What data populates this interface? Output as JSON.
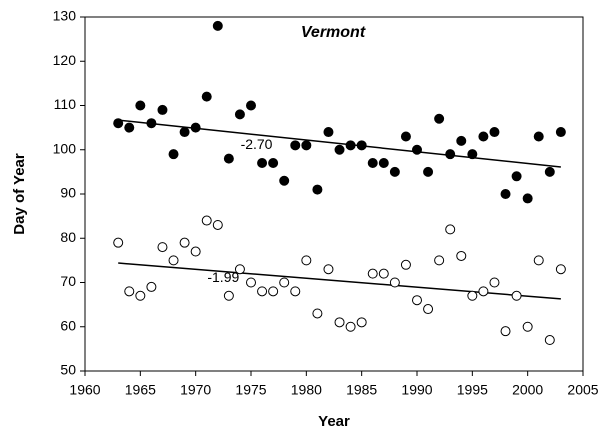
{
  "chart_data": {
    "type": "scatter",
    "title": "Vermont",
    "xlabel": "Year",
    "ylabel": "Day of Year",
    "xlim": [
      1960,
      2005
    ],
    "xticks": [
      1960,
      1965,
      1970,
      1975,
      1980,
      1985,
      1990,
      1995,
      2000,
      2005
    ],
    "ylim": [
      50,
      130
    ],
    "yticks": [
      50,
      60,
      70,
      80,
      90,
      100,
      110,
      120,
      130
    ],
    "x": [
      1963,
      1964,
      1965,
      1966,
      1967,
      1968,
      1969,
      1970,
      1971,
      1972,
      1973,
      1974,
      1975,
      1976,
      1977,
      1978,
      1979,
      1980,
      1981,
      1982,
      1983,
      1984,
      1985,
      1986,
      1987,
      1988,
      1989,
      1990,
      1991,
      1992,
      1993,
      1994,
      1995,
      1996,
      1997,
      1998,
      1999,
      2000,
      2001,
      2002,
      2003
    ],
    "series": [
      {
        "color": "#000000",
        "filled": true,
        "values": [
          106,
          105,
          110,
          106,
          109,
          99,
          104,
          105,
          112,
          128,
          98,
          108,
          110,
          97,
          97,
          93,
          101,
          101,
          91,
          104,
          100,
          101,
          101,
          97,
          97,
          95,
          103,
          100,
          95,
          107,
          99,
          102,
          99,
          103,
          104,
          90,
          94,
          89,
          103,
          95,
          104
        ]
      },
      {
        "color": "#000000",
        "filled": false,
        "values": [
          79,
          68,
          67,
          69,
          78,
          75,
          79,
          77,
          84,
          83,
          67,
          73,
          70,
          68,
          68,
          70,
          68,
          75,
          63,
          73,
          61,
          60,
          61,
          72,
          72,
          70,
          74,
          66,
          64,
          75,
          82,
          76,
          67,
          68,
          70,
          59,
          67,
          60,
          75,
          57,
          73
        ]
      }
    ],
    "trend_lines": [
      {
        "x": [
          1963,
          2003
        ],
        "y": [
          106.7,
          96.1
        ]
      },
      {
        "x": [
          1963,
          2003
        ],
        "y": [
          74.4,
          66.3
        ]
      }
    ],
    "annotations": [
      {
        "text": "-2.70",
        "x": 1975.5,
        "y": 101
      },
      {
        "text": "-1.99",
        "x": 1972.5,
        "y": 71
      }
    ]
  }
}
